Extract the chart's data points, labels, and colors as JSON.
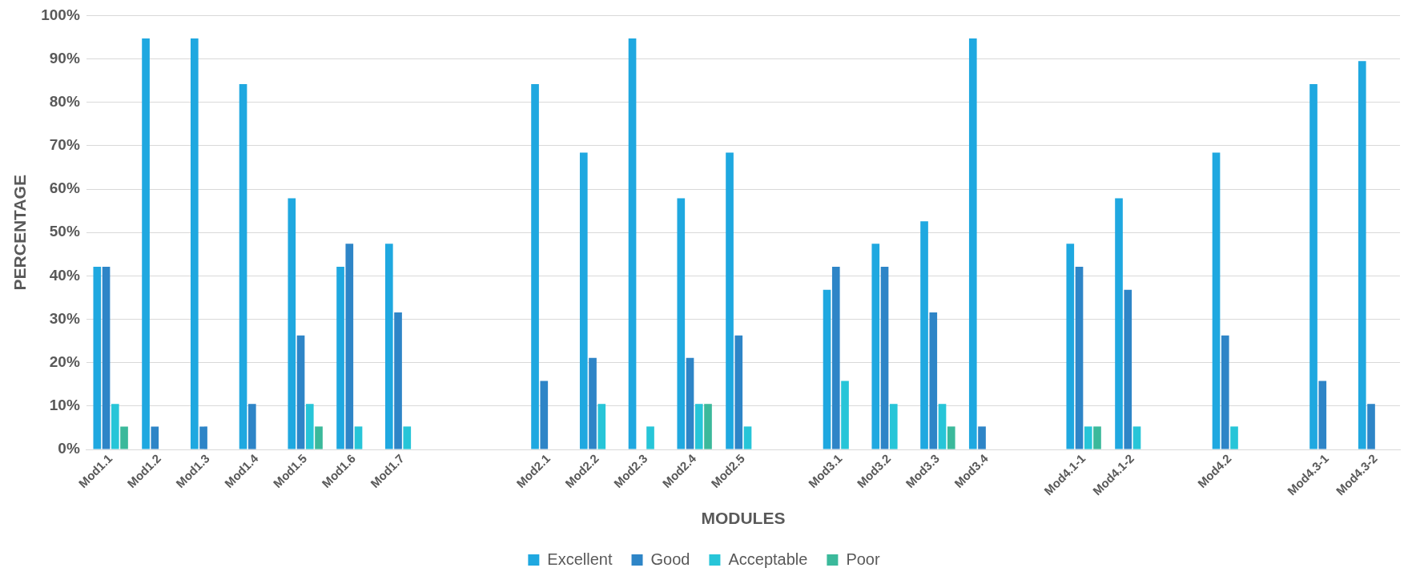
{
  "chart_data": {
    "type": "bar",
    "xlabel": "MODULES",
    "ylabel": "PERCENTAGE",
    "categories": [
      "Mod1.1",
      "Mod1.2",
      "Mod1.3",
      "Mod1.4",
      "Mod1.5",
      "Mod1.6",
      "Mod1.7",
      null,
      null,
      "Mod2.1",
      "Mod2.2",
      "Mod2.3",
      "Mod2.4",
      "Mod2.5",
      null,
      "Mod3.1",
      "Mod3.2",
      "Mod3.3",
      "Mod3.4",
      null,
      "Mod4.1-1",
      "Mod4.1-2",
      null,
      "Mod4.2",
      null,
      "Mod4.3-1",
      "Mod4.3-2"
    ],
    "series": [
      {
        "name": "Excellent",
        "color": "#1fa8e0",
        "values": [
          42.1,
          94.7,
          94.7,
          84.2,
          57.9,
          42.1,
          47.4,
          null,
          null,
          84.2,
          68.4,
          94.7,
          57.9,
          68.4,
          null,
          36.8,
          47.4,
          52.6,
          94.7,
          null,
          47.4,
          57.9,
          null,
          68.4,
          null,
          84.2,
          89.5
        ]
      },
      {
        "name": "Good",
        "color": "#2e85c7",
        "values": [
          42.1,
          5.3,
          5.3,
          10.5,
          26.3,
          47.4,
          31.6,
          null,
          null,
          15.8,
          21.1,
          0,
          21.1,
          26.3,
          null,
          42.1,
          42.1,
          31.6,
          5.3,
          null,
          42.1,
          36.8,
          null,
          26.3,
          null,
          15.8,
          10.5
        ]
      },
      {
        "name": "Acceptable",
        "color": "#27c5d8",
        "values": [
          10.5,
          0,
          0,
          0,
          10.5,
          5.3,
          5.3,
          null,
          null,
          0,
          10.5,
          5.3,
          10.5,
          5.3,
          null,
          15.8,
          10.5,
          10.5,
          0,
          null,
          5.3,
          5.3,
          null,
          5.3,
          null,
          0,
          0
        ]
      },
      {
        "name": "Poor",
        "color": "#3bb99b",
        "values": [
          5.3,
          0,
          0,
          0,
          5.3,
          0,
          0,
          null,
          null,
          0,
          0,
          0,
          10.5,
          0,
          null,
          0,
          0,
          5.3,
          0,
          null,
          5.3,
          0,
          null,
          0,
          null,
          0,
          0
        ]
      }
    ],
    "ylim": [
      0,
      100
    ],
    "yticks": [
      {
        "value": 0,
        "label": "0%"
      },
      {
        "value": 10,
        "label": "10%"
      },
      {
        "value": 20,
        "label": "20%"
      },
      {
        "value": 30,
        "label": "30%"
      },
      {
        "value": 40,
        "label": "40%"
      },
      {
        "value": 50,
        "label": "50%"
      },
      {
        "value": 60,
        "label": "60%"
      },
      {
        "value": 70,
        "label": "70%"
      },
      {
        "value": 80,
        "label": "80%"
      },
      {
        "value": 90,
        "label": "90%"
      },
      {
        "value": 100,
        "label": "100%"
      }
    ],
    "grid": "y",
    "legend": "bottom"
  }
}
